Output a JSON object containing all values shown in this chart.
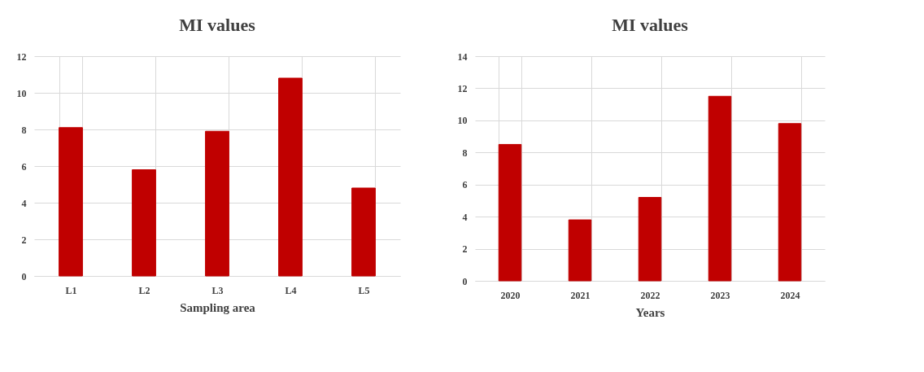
{
  "chart_data": [
    {
      "type": "bar",
      "title": "MI values",
      "xlabel": "Sampling area",
      "categories": [
        "L1",
        "L2",
        "L3",
        "L4",
        "L5"
      ],
      "values": [
        8.1,
        5.8,
        7.9,
        10.8,
        4.8
      ],
      "color": "#c00000",
      "ylim": [
        0,
        12
      ],
      "yticks": [
        0,
        2,
        4,
        6,
        8,
        10,
        12
      ],
      "grid": true
    },
    {
      "type": "bar",
      "title": "MI values",
      "xlabel": "Years",
      "categories": [
        "2020",
        "2021",
        "2022",
        "2023",
        "2024"
      ],
      "values": [
        8.5,
        3.8,
        5.2,
        11.5,
        9.8
      ],
      "color": "#c00000",
      "ylim": [
        0,
        14
      ],
      "yticks": [
        0,
        2,
        4,
        6,
        8,
        10,
        12,
        14
      ],
      "grid": true
    }
  ]
}
